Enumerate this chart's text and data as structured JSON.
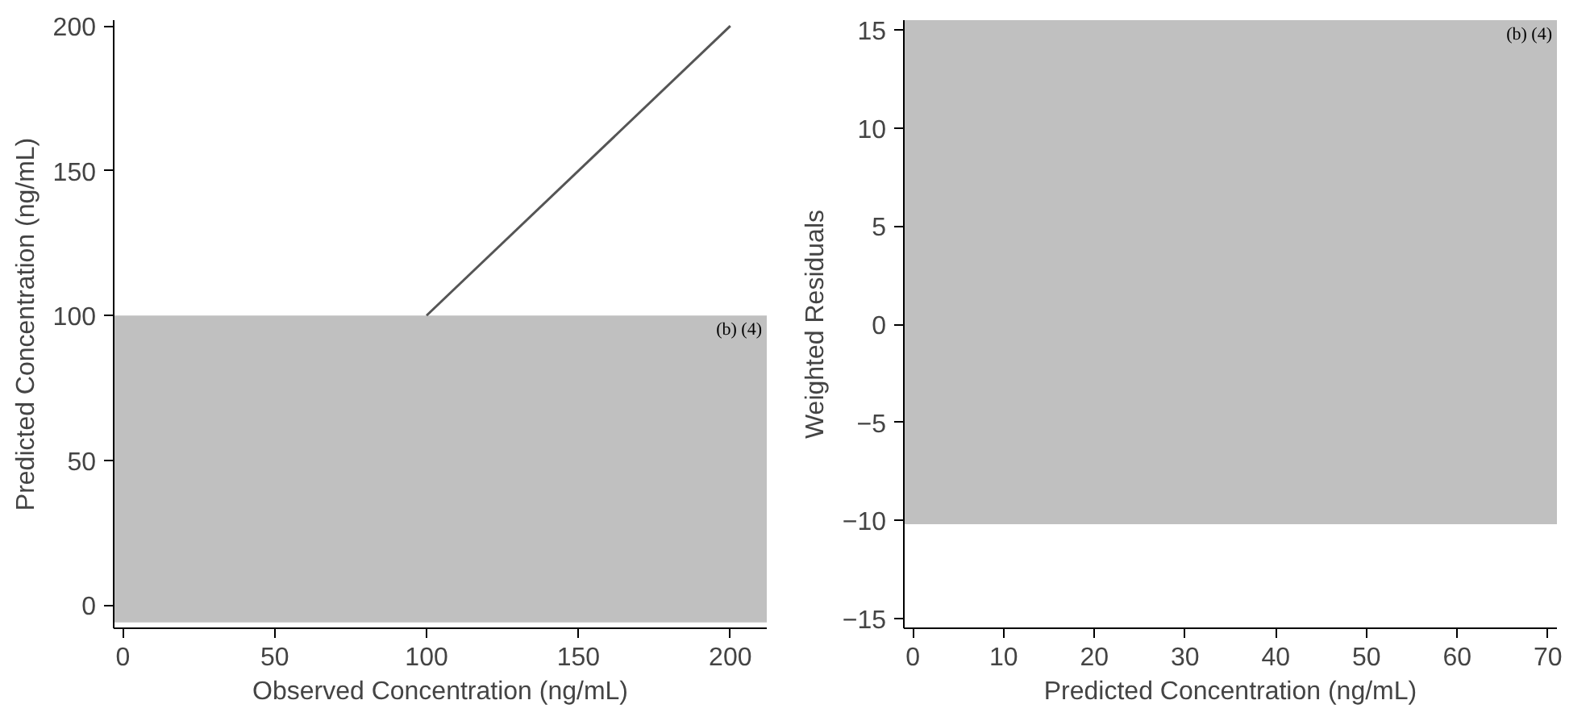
{
  "chart_data": [
    {
      "type": "line",
      "xlabel": "Observed Concentration (ng/mL)",
      "ylabel": "Predicted Concentration (ng/mL)",
      "xlim": [
        -3,
        212
      ],
      "ylim": [
        -8,
        202
      ],
      "xticks": [
        0,
        50,
        100,
        150,
        200
      ],
      "yticks": [
        0,
        50,
        100,
        150,
        200
      ],
      "grid": false,
      "series": [
        {
          "color": "#555555",
          "x": [
            100,
            200
          ],
          "values": [
            100,
            200
          ]
        }
      ],
      "bands": [
        {
          "axis": "y",
          "from": -6,
          "to": 100,
          "color": "#c0c0c0"
        }
      ],
      "annotations": [
        "(b) (4)"
      ]
    },
    {
      "type": "scatter",
      "xlabel": "Predicted Concentration (ng/mL)",
      "ylabel": "Weighted Residuals",
      "xlim": [
        -1,
        71
      ],
      "ylim": [
        -15.5,
        15.5
      ],
      "xticks": [
        0,
        10,
        20,
        30,
        40,
        50,
        60,
        70
      ],
      "yticks": [
        -15,
        -10,
        -5,
        0,
        5,
        10,
        15
      ],
      "grid": false,
      "bands": [
        {
          "axis": "y",
          "from": -10.2,
          "to": 15.5,
          "color": "#c0c0c0"
        }
      ],
      "annotations": [
        "(b) (4)"
      ]
    }
  ]
}
